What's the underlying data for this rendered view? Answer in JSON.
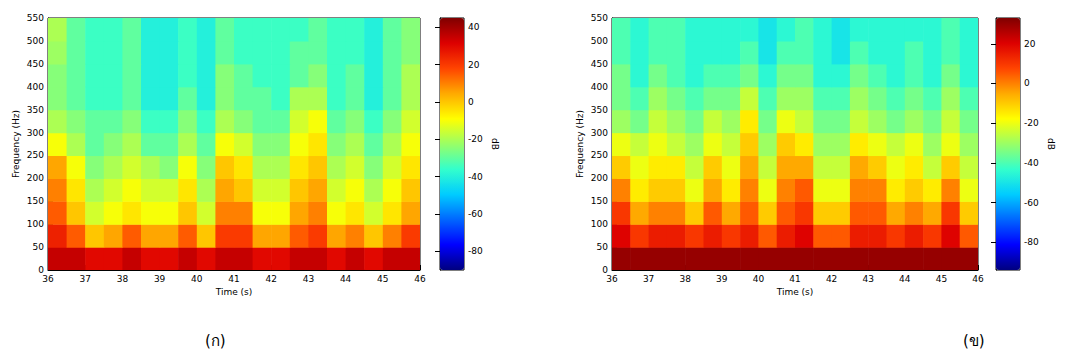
{
  "chart_data": [
    {
      "type": "heatmap",
      "label": "(ก)",
      "x_label": "Time (s)",
      "y_label": "Frequency (Hz)",
      "xlim": [
        36,
        46
      ],
      "xticks": [
        36,
        37,
        38,
        39,
        40,
        41,
        42,
        43,
        44,
        45,
        46
      ],
      "ylim": [
        0,
        550
      ],
      "yticks": [
        0,
        50,
        100,
        150,
        200,
        250,
        300,
        350,
        400,
        450,
        500,
        550
      ],
      "x": [
        36.25,
        36.75,
        37.25,
        37.75,
        38.25,
        38.75,
        39.25,
        39.75,
        40.25,
        40.75,
        41.25,
        41.75,
        42.25,
        42.75,
        43.25,
        43.75,
        44.25,
        44.75,
        45.25,
        45.75
      ],
      "y": [
        25,
        75,
        125,
        175,
        225,
        275,
        325,
        375,
        425,
        475,
        525
      ],
      "cells": [
        [
          35,
          35,
          30,
          30,
          35,
          30,
          30,
          35,
          30,
          35,
          35,
          30,
          30,
          35,
          35,
          30,
          35,
          30,
          35,
          35
        ],
        [
          25,
          15,
          0,
          5,
          15,
          5,
          5,
          15,
          0,
          20,
          20,
          5,
          5,
          15,
          20,
          5,
          10,
          0,
          10,
          20
        ],
        [
          15,
          0,
          -15,
          -10,
          -5,
          -10,
          -10,
          0,
          -15,
          10,
          10,
          -10,
          -10,
          5,
          10,
          -10,
          -5,
          -15,
          -5,
          5
        ],
        [
          10,
          -5,
          -20,
          -15,
          -10,
          -15,
          -15,
          -5,
          -20,
          5,
          0,
          -15,
          -15,
          0,
          5,
          -15,
          -10,
          -20,
          -10,
          0
        ],
        [
          5,
          -10,
          -25,
          -20,
          -15,
          -20,
          -25,
          -10,
          -25,
          0,
          -5,
          -20,
          -20,
          -5,
          0,
          -20,
          -15,
          -25,
          -15,
          -5
        ],
        [
          -10,
          -20,
          -30,
          -25,
          -20,
          -30,
          -30,
          -20,
          -30,
          -10,
          -15,
          -25,
          -25,
          -10,
          -5,
          -25,
          -20,
          -30,
          -20,
          -10
        ],
        [
          -20,
          -25,
          -30,
          -30,
          -25,
          -35,
          -35,
          -25,
          -35,
          -20,
          -25,
          -30,
          -30,
          -15,
          -10,
          -30,
          -25,
          -35,
          -25,
          -15
        ],
        [
          -25,
          -30,
          -35,
          -35,
          -30,
          -40,
          -40,
          -30,
          -40,
          -25,
          -30,
          -30,
          -35,
          -20,
          -20,
          -35,
          -30,
          -40,
          -30,
          -20
        ],
        [
          -25,
          -30,
          -35,
          -35,
          -30,
          -40,
          -40,
          -35,
          -40,
          -25,
          -30,
          -35,
          -35,
          -30,
          -25,
          -35,
          -30,
          -40,
          -30,
          -20
        ],
        [
          -22,
          -30,
          -35,
          -35,
          -30,
          -40,
          -40,
          -35,
          -40,
          -30,
          -35,
          -35,
          -35,
          -30,
          -30,
          -35,
          -35,
          -40,
          -30,
          -25
        ],
        [
          -20,
          -30,
          -35,
          -35,
          -30,
          -40,
          -40,
          -35,
          -40,
          -30,
          -35,
          -35,
          -35,
          -35,
          -30,
          -35,
          -35,
          -40,
          -30,
          -25
        ]
      ],
      "colorbar": {
        "label": "dB",
        "range": [
          -90,
          45
        ],
        "ticks": [
          40,
          20,
          0,
          -20,
          -40,
          -60,
          -80
        ]
      }
    },
    {
      "type": "heatmap",
      "label": "(ข)",
      "x_label": "Time (s)",
      "y_label": "Frequency (Hz)",
      "xlim": [
        36,
        46
      ],
      "xticks": [
        36,
        37,
        38,
        39,
        40,
        41,
        42,
        43,
        44,
        45,
        46
      ],
      "ylim": [
        0,
        550
      ],
      "yticks": [
        0,
        50,
        100,
        150,
        200,
        250,
        300,
        350,
        400,
        450,
        500,
        550
      ],
      "x": [
        36.25,
        36.75,
        37.25,
        37.75,
        38.25,
        38.75,
        39.25,
        39.75,
        40.25,
        40.75,
        41.25,
        41.75,
        42.25,
        42.75,
        43.25,
        43.75,
        44.25,
        44.75,
        45.25,
        45.75
      ],
      "y": [
        25,
        75,
        125,
        175,
        225,
        275,
        325,
        375,
        425,
        475,
        525
      ],
      "cells": [
        [
          30,
          30,
          30,
          30,
          30,
          30,
          30,
          30,
          30,
          30,
          30,
          30,
          30,
          30,
          30,
          30,
          30,
          30,
          30,
          30
        ],
        [
          20,
          10,
          15,
          15,
          10,
          15,
          10,
          15,
          5,
          15,
          20,
          5,
          5,
          15,
          15,
          10,
          15,
          10,
          20,
          5
        ],
        [
          10,
          -5,
          0,
          0,
          -10,
          5,
          -5,
          5,
          -10,
          5,
          10,
          -10,
          -10,
          5,
          5,
          -5,
          0,
          -5,
          10,
          -10
        ],
        [
          0,
          -15,
          -10,
          -10,
          -20,
          -5,
          -15,
          0,
          -20,
          0,
          5,
          -20,
          -20,
          0,
          0,
          -15,
          -10,
          -15,
          0,
          -20
        ],
        [
          -10,
          -20,
          -15,
          -15,
          -25,
          -10,
          -20,
          -5,
          -25,
          -5,
          -5,
          -25,
          -25,
          -5,
          -10,
          -20,
          -15,
          -25,
          -10,
          -25
        ],
        [
          -20,
          -25,
          -20,
          -25,
          -30,
          -20,
          -25,
          -10,
          -30,
          -10,
          -15,
          -30,
          -30,
          -15,
          -20,
          -25,
          -20,
          -30,
          -20,
          -30
        ],
        [
          -30,
          -35,
          -25,
          -30,
          -35,
          -25,
          -30,
          -15,
          -35,
          -20,
          -25,
          -35,
          -35,
          -25,
          -30,
          -35,
          -30,
          -35,
          -25,
          -35
        ],
        [
          -35,
          -40,
          -30,
          -35,
          -40,
          -35,
          -35,
          -25,
          -40,
          -30,
          -30,
          -40,
          -40,
          -30,
          -35,
          -40,
          -35,
          -40,
          -30,
          -40
        ],
        [
          -35,
          -45,
          -35,
          -40,
          -45,
          -40,
          -40,
          -35,
          -45,
          -35,
          -35,
          -45,
          -45,
          -35,
          -40,
          -45,
          -40,
          -45,
          -35,
          -45
        ],
        [
          -40,
          -45,
          -40,
          -40,
          -45,
          -45,
          -45,
          -40,
          -50,
          -40,
          -40,
          -45,
          -50,
          -40,
          -45,
          -45,
          -40,
          -45,
          -40,
          -45
        ],
        [
          -40,
          -45,
          -40,
          -40,
          -45,
          -45,
          -45,
          -45,
          -50,
          -45,
          -40,
          -45,
          -50,
          -45,
          -45,
          -45,
          -45,
          -45,
          -40,
          -45
        ]
      ],
      "colorbar": {
        "label": "dB",
        "range": [
          -94,
          33
        ],
        "ticks": [
          20,
          0,
          -20,
          -40,
          -60,
          -80
        ]
      }
    }
  ]
}
